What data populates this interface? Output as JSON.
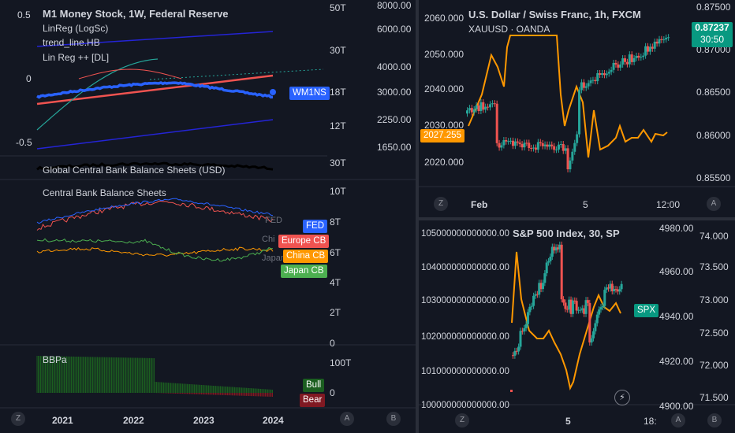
{
  "colors": {
    "background": "#131722",
    "separator": "#2a2e39",
    "blue_tag": "#2962ff",
    "red_tag": "#f05350",
    "orange_tag": "#ff9800",
    "green_tag": "#4caf50",
    "teal_tag": "#089981",
    "bear_tag": "#801922",
    "bull_tag": "#1b5e20"
  },
  "left_chart": {
    "title": "M1 Money Stock, 1W, Federal Reserve",
    "indicators": [
      "LinReg (LogSc)",
      "trend_line.HB",
      "Lin Reg ++ [DL]"
    ],
    "left_scale": [
      "0.5",
      "0",
      "-0.5"
    ],
    "t_scale": [
      "50T",
      "30T",
      "18T",
      "12T"
    ],
    "price_scale": [
      "8000.00",
      "6000.00",
      "4000.00",
      "3000.00",
      "2250.00",
      "1650.00"
    ],
    "series_tag": "WM1NS",
    "pane2": {
      "title": "Global Central Bank Balance Sheets (USD)",
      "scale_top": "30T"
    },
    "pane3": {
      "title": "Central Bank Balance Sheets",
      "scale": [
        "10T",
        "8T",
        "6T",
        "4T",
        "2T",
        "0"
      ],
      "tags": {
        "fed": "FED",
        "europe": "Europe CB",
        "china": "China CB",
        "japan": "Japan CB"
      },
      "ghost_labels": [
        "FED",
        "Chi",
        "Japan"
      ]
    },
    "pane4": {
      "title": "BBPa",
      "scale": [
        "100T",
        "0"
      ],
      "bull": "Bull",
      "bear": "Bear"
    },
    "x_axis": [
      "2021",
      "2022",
      "2023",
      "2024"
    ],
    "corner_left": "Z",
    "corner_a": "A",
    "corner_b": "B"
  },
  "top_right_chart": {
    "title": "U.S. Dollar / Swiss Franc, 1h, FXCM",
    "subtitle": "XAUUSD · OANDA",
    "left_scale": [
      "2060.000",
      "2050.000",
      "2040.000",
      "2030.000",
      "2020.000"
    ],
    "left_tag": "2027.255",
    "right_scale": [
      "0.87500",
      "0.87000",
      "0.86500",
      "0.86000",
      "0.85500"
    ],
    "price_tag": "0.87237",
    "countdown": "30:50",
    "x_axis": [
      "Feb",
      "5",
      "12:00"
    ],
    "corner_left": "Z",
    "corner_a": "A"
  },
  "bottom_right_chart": {
    "title": "S&P 500 Index, 30, SP",
    "left_scale": [
      "105000000000000.00",
      "104000000000000.00",
      "103000000000000.00",
      "102000000000000.00",
      "101000000000000.00",
      "100000000000000.00"
    ],
    "mid_scale": [
      "4980.00",
      "4960.00",
      "4940.00",
      "4920.00",
      "4900.00"
    ],
    "right_scale": [
      "74.000",
      "73.500",
      "73.000",
      "72.500",
      "72.000",
      "71.500"
    ],
    "spx_tag": "SPX",
    "x_axis": [
      "5",
      "18:"
    ],
    "corner_left": "Z",
    "corner_a": "A",
    "corner_b": "B"
  }
}
